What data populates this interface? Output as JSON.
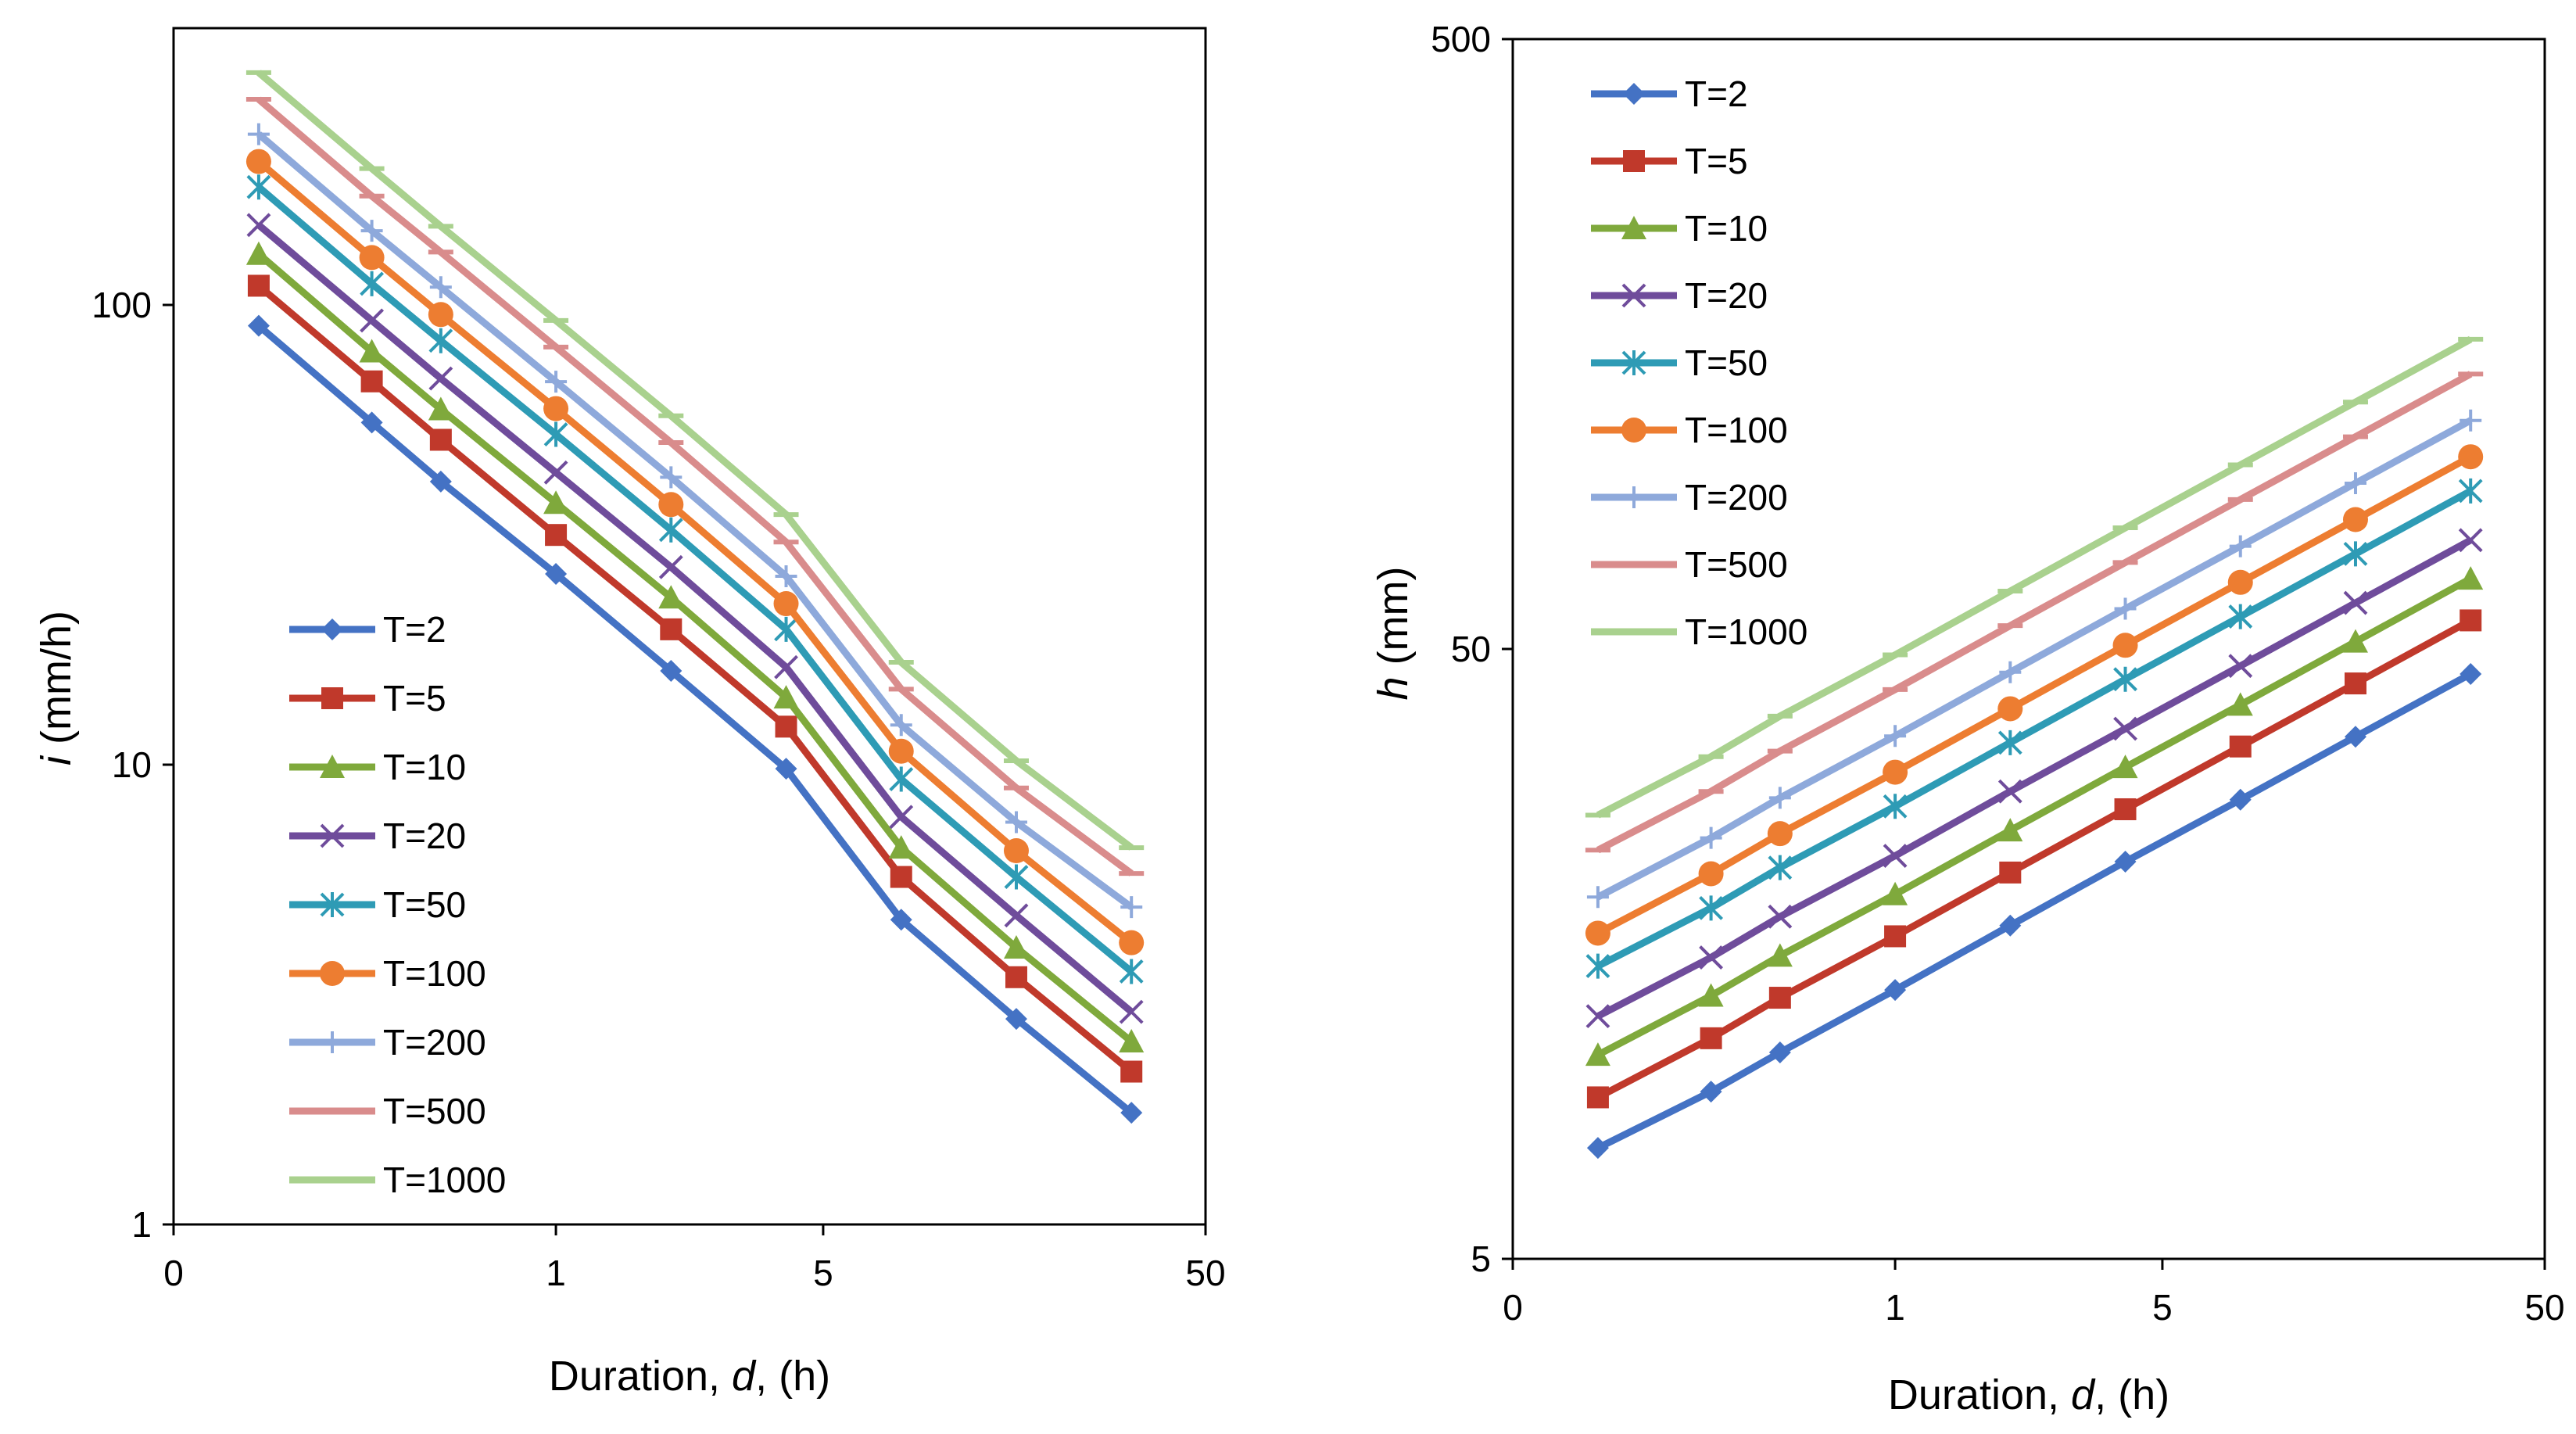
{
  "chart_data": [
    {
      "type": "line",
      "panel": "left",
      "ylabel_var": "i",
      "ylabel_unit": " (mm/h)",
      "xlabel_prefix": "Duration, ",
      "xlabel_var": "d",
      "xlabel_suffix": ", (h)",
      "x_scale": "log",
      "y_scale": "log",
      "xlim": [
        0.1,
        50
      ],
      "ylim": [
        1,
        400
      ],
      "x_tick_labels": [
        {
          "value": 0.1,
          "label": "0"
        },
        {
          "value": 1,
          "label": "1"
        },
        {
          "value": 5,
          "label": "5"
        },
        {
          "value": 50,
          "label": "50"
        }
      ],
      "y_tick_labels": [
        {
          "value": 1,
          "label": "1"
        },
        {
          "value": 10,
          "label": "10"
        },
        {
          "value": 100,
          "label": "100"
        }
      ],
      "legend_position": "lower-left",
      "x": [
        0.167,
        0.33,
        0.5,
        1,
        2,
        4,
        8,
        16,
        32
      ],
      "series": [
        {
          "name": "T=2",
          "color": "#4472C4",
          "marker": "diamond",
          "values": [
            90.1,
            55.5,
            41.3,
            26.0,
            16.0,
            9.8,
            4.6,
            2.8,
            1.75
          ]
        },
        {
          "name": "T=5",
          "color": "#C0392B",
          "marker": "square",
          "values": [
            110.1,
            68.2,
            50.9,
            31.6,
            19.7,
            12.1,
            5.7,
            3.45,
            2.15
          ]
        },
        {
          "name": "T=10",
          "color": "#7FA93C",
          "marker": "triangle",
          "values": [
            129.1,
            79.2,
            59.3,
            37.1,
            23.1,
            14.0,
            6.6,
            4.0,
            2.5
          ]
        },
        {
          "name": "T=20",
          "color": "#6F4C9B",
          "marker": "x",
          "values": [
            149.2,
            92.5,
            69.2,
            43.2,
            26.9,
            16.3,
            7.7,
            4.7,
            2.9
          ]
        },
        {
          "name": "T=50",
          "color": "#2E9BB5",
          "marker": "asterisk",
          "values": [
            180.5,
            111.2,
            83.6,
            52.3,
            32.4,
            19.7,
            9.3,
            5.7,
            3.55
          ]
        },
        {
          "name": "T=100",
          "color": "#ED7D31",
          "marker": "circle",
          "values": [
            205.1,
            126.8,
            95.3,
            59.5,
            36.8,
            22.4,
            10.7,
            6.5,
            4.1
          ]
        },
        {
          "name": "T=200",
          "color": "#8EA9DB",
          "marker": "plus",
          "values": [
            235.2,
            145.0,
            109.3,
            68.1,
            42.2,
            25.7,
            12.2,
            7.5,
            4.9
          ]
        },
        {
          "name": "T=500",
          "color": "#D98C8C",
          "marker": "dash",
          "values": [
            280.1,
            172.5,
            130.3,
            81.0,
            50.2,
            30.5,
            14.6,
            8.9,
            5.8
          ]
        },
        {
          "name": "T=1000",
          "color": "#A9D18E",
          "marker": "dash",
          "values": [
            320.2,
            198.0,
            148.3,
            92.5,
            57.4,
            35.0,
            16.7,
            10.2,
            6.6
          ]
        }
      ]
    },
    {
      "type": "line",
      "panel": "right",
      "ylabel_var": "h",
      "ylabel_unit": " (mm)",
      "xlabel_prefix": "Duration, ",
      "xlabel_var": "d",
      "xlabel_suffix": ", (h)",
      "x_scale": "log",
      "y_scale": "log",
      "xlim": [
        0.1,
        50
      ],
      "ylim": [
        5,
        500
      ],
      "x_tick_labels": [
        {
          "value": 0.1,
          "label": "0"
        },
        {
          "value": 1,
          "label": "1"
        },
        {
          "value": 5,
          "label": "5"
        },
        {
          "value": 50,
          "label": "50"
        }
      ],
      "y_tick_labels": [
        {
          "value": 5,
          "label": "5"
        },
        {
          "value": 50,
          "label": "50"
        },
        {
          "value": 500,
          "label": "500"
        }
      ],
      "legend_position": "top-left",
      "x": [
        0.167,
        0.33,
        0.5,
        1,
        2,
        4,
        8,
        16,
        32
      ],
      "series": [
        {
          "name": "T=2",
          "color": "#4472C4",
          "marker": "diamond",
          "values": [
            7.6,
            9.4,
            10.9,
            13.8,
            17.6,
            22.4,
            28.3,
            35.9,
            45.5
          ]
        },
        {
          "name": "T=5",
          "color": "#C0392B",
          "marker": "square",
          "values": [
            9.2,
            11.5,
            13.4,
            16.9,
            21.5,
            27.3,
            34.6,
            43.9,
            55.7
          ]
        },
        {
          "name": "T=10",
          "color": "#7FA93C",
          "marker": "triangle",
          "values": [
            10.8,
            13.5,
            15.7,
            19.8,
            25.2,
            32.0,
            40.5,
            51.4,
            65.2
          ]
        },
        {
          "name": "T=20",
          "color": "#6F4C9B",
          "marker": "x",
          "values": [
            12.5,
            15.6,
            18.2,
            22.9,
            29.2,
            37.0,
            46.9,
            59.5,
            75.4
          ]
        },
        {
          "name": "T=50",
          "color": "#2E9BB5",
          "marker": "asterisk",
          "values": [
            15.1,
            18.8,
            21.9,
            27.6,
            35.1,
            44.6,
            56.5,
            71.6,
            90.8
          ]
        },
        {
          "name": "T=100",
          "color": "#ED7D31",
          "marker": "circle",
          "values": [
            17.1,
            21.4,
            24.9,
            31.4,
            39.9,
            50.7,
            64.3,
            81.5,
            103.3
          ]
        },
        {
          "name": "T=200",
          "color": "#8EA9DB",
          "marker": "plus",
          "values": [
            19.6,
            24.5,
            28.5,
            36.0,
            45.8,
            58.2,
            73.7,
            93.5,
            118.5
          ]
        },
        {
          "name": "T=500",
          "color": "#D98C8C",
          "marker": "dash",
          "values": [
            23.4,
            29.2,
            34.0,
            42.9,
            54.6,
            69.3,
            87.9,
            111.4,
            141.2
          ]
        },
        {
          "name": "T=1000",
          "color": "#A9D18E",
          "marker": "dash",
          "values": [
            26.7,
            33.3,
            38.8,
            48.9,
            62.2,
            79.0,
            100.2,
            127.0,
            161.0
          ]
        }
      ]
    }
  ]
}
